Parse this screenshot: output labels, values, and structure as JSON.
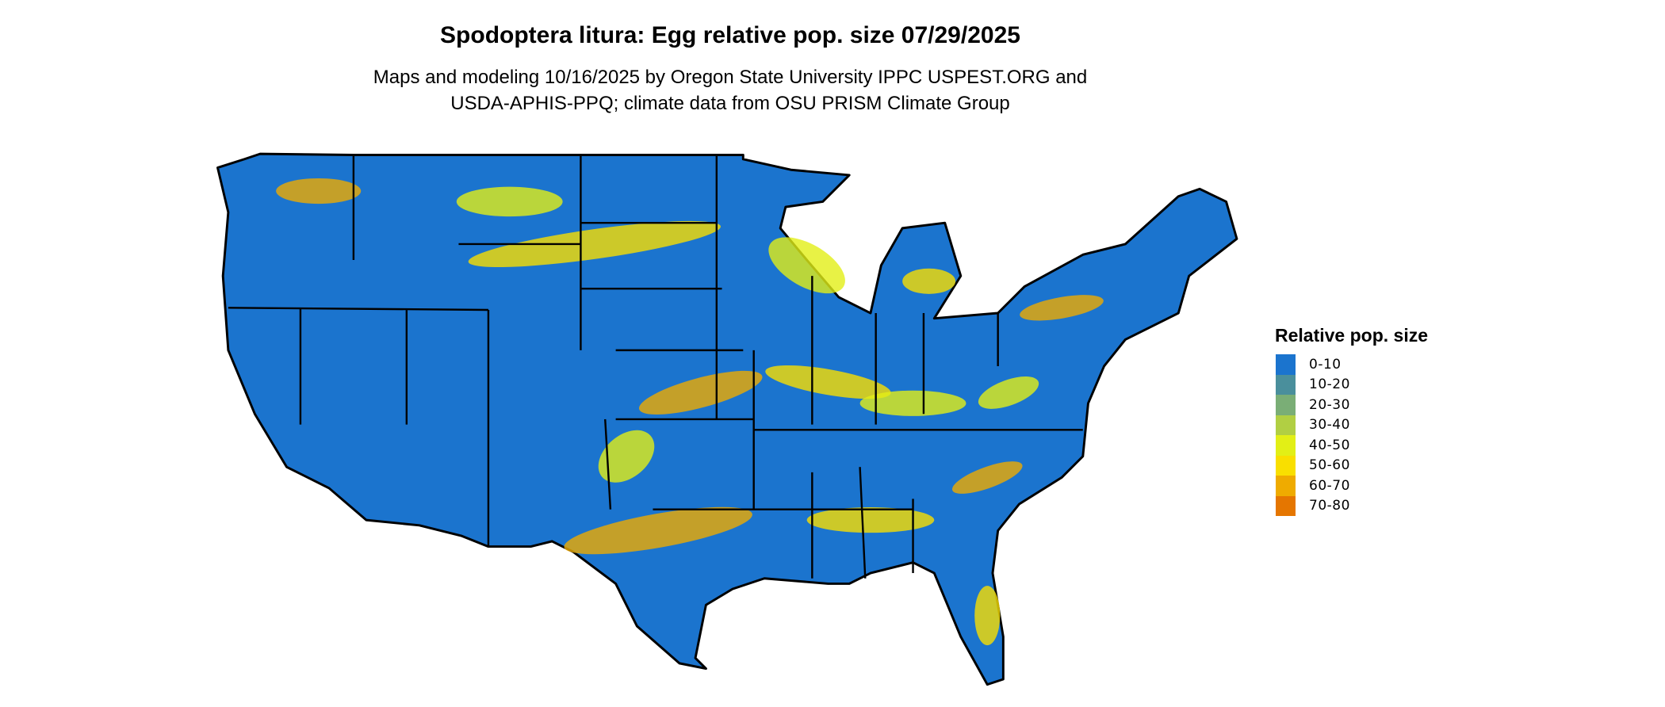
{
  "title": "Spodoptera litura: Egg relative pop. size 07/29/2025",
  "subtitle_lines": [
    "Maps and modeling 10/16/2025 by Oregon State University IPPC USPEST.ORG and",
    "USDA-APHIS-PPQ; climate data from OSU PRISM Climate Group"
  ],
  "legend": {
    "title": "Relative pop. size",
    "items": [
      {
        "label": "0-10",
        "color": "#1b74ce"
      },
      {
        "label": "10-20",
        "color": "#4a8f9c"
      },
      {
        "label": "20-30",
        "color": "#7aae76"
      },
      {
        "label": "30-40",
        "color": "#b1cf43"
      },
      {
        "label": "40-50",
        "color": "#e2ef16"
      },
      {
        "label": "50-60",
        "color": "#f9df00"
      },
      {
        "label": "60-70",
        "color": "#efab00"
      },
      {
        "label": "70-80",
        "color": "#e57600"
      }
    ]
  }
}
